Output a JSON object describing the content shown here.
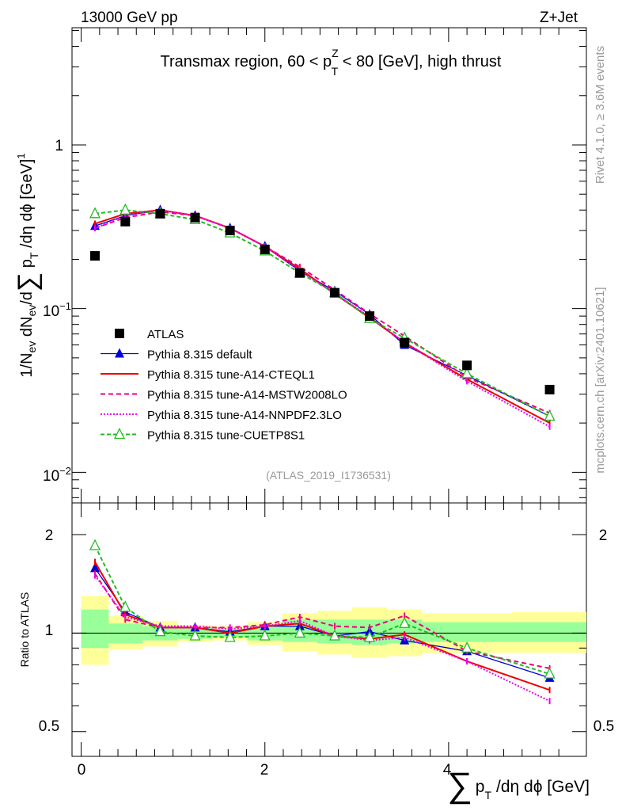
{
  "header": {
    "left": "13000 GeV pp",
    "right": "Z+Jet"
  },
  "side_text": {
    "rivet": "Rivet 4.1.0, ≥ 3.6M events",
    "mcplots": "mcplots.cern.ch [arXiv:2401.10621]"
  },
  "ref_label": "(ATLAS_2019_I1736531)",
  "colors": {
    "atlas": "#000000",
    "default": "#0000dd",
    "cteql1": "#ee0000",
    "mstw": "#ee0077",
    "nnpdf": "#ee00ee",
    "cuetp8s1": "#22bb22",
    "band_outer": "#ffff99",
    "band_inner": "#99ff99"
  },
  "chart_data": [
    {
      "type": "line",
      "panel": "main",
      "title": "Transmax region, 60 < p_T^Z < 80 [GeV], high thrust",
      "title_parts": {
        "pre": "Transmax region, 60 < p",
        "sup": "Z",
        "sub": "T",
        "post": " < 80 [GeV], high thrust"
      },
      "ylabel": "1/N_ev dN_ev/d∑ p_T /dη dϕ [GeV]^1",
      "yscale": "log",
      "ylim": [
        0.0065,
        5.2
      ],
      "xlim": [
        -0.1,
        5.5
      ],
      "ytick_labels": [
        "1",
        "10^-1",
        "10^-2"
      ],
      "ytick_values": [
        1,
        0.1,
        0.01
      ],
      "x": [
        0.15,
        0.48,
        0.86,
        1.24,
        1.62,
        2.0,
        2.38,
        2.76,
        3.14,
        3.52,
        4.2,
        5.1
      ],
      "series": [
        {
          "name": "ATLAS",
          "color_key": "atlas",
          "marker": "square",
          "values": [
            0.21,
            0.34,
            0.38,
            0.36,
            0.3,
            0.23,
            0.165,
            0.125,
            0.09,
            0.062,
            0.045,
            0.032
          ]
        },
        {
          "name": "Pythia 8.315 default",
          "color_key": "default",
          "marker": "triangle",
          "dash": "",
          "values": [
            0.32,
            0.37,
            0.4,
            0.37,
            0.31,
            0.24,
            0.17,
            0.128,
            0.092,
            0.06,
            0.039,
            0.022
          ]
        },
        {
          "name": "Pythia 8.315 tune-A14-CTEQL1",
          "color_key": "cteql1",
          "marker": "none",
          "dash": "",
          "values": [
            0.33,
            0.38,
            0.4,
            0.37,
            0.31,
            0.24,
            0.175,
            0.123,
            0.088,
            0.062,
            0.037,
            0.02
          ]
        },
        {
          "name": "Pythia 8.315 tune-A14-MSTW2008LO",
          "color_key": "mstw",
          "marker": "none",
          "dash": "6,4",
          "values": [
            0.31,
            0.36,
            0.39,
            0.37,
            0.31,
            0.24,
            0.18,
            0.13,
            0.093,
            0.068,
            0.038,
            0.023
          ]
        },
        {
          "name": "Pythia 8.315 tune-A14-NNPDF2.3LO",
          "color_key": "nnpdf",
          "marker": "none",
          "dash": "2,2",
          "values": [
            0.31,
            0.37,
            0.4,
            0.37,
            0.31,
            0.24,
            0.17,
            0.124,
            0.089,
            0.062,
            0.036,
            0.019
          ]
        },
        {
          "name": "Pythia 8.315 tune-CUETP8S1",
          "color_key": "cuetp8s1",
          "marker": "open-triangle",
          "dash": "5,3",
          "values": [
            0.38,
            0.4,
            0.38,
            0.35,
            0.29,
            0.225,
            0.165,
            0.125,
            0.087,
            0.066,
            0.04,
            0.022
          ]
        }
      ]
    },
    {
      "type": "line",
      "panel": "ratio",
      "ylabel": "Ratio to ATLAS",
      "xlabel": "∑ p_T /dη dϕ [GeV]",
      "xlabel_parts": {
        "sum": "∑",
        "p": "p",
        "sub": "T",
        "rest": "/dη dϕ [GeV]"
      },
      "yscale": "log",
      "ylim": [
        0.42,
        2.5
      ],
      "xlim": [
        -0.1,
        5.5
      ],
      "ytick_labels": [
        "2",
        "1",
        "0.5"
      ],
      "ytick_values": [
        2,
        1,
        0.5
      ],
      "xtick_labels": [
        "0",
        "2",
        "4"
      ],
      "xtick_values": [
        0,
        2,
        4
      ],
      "bins": [
        {
          "lo": 0.0,
          "hi": 0.3,
          "inner": [
            0.9,
            1.18
          ],
          "outer": [
            0.8,
            1.3
          ]
        },
        {
          "lo": 0.3,
          "hi": 0.67,
          "inner": [
            0.93,
            1.07
          ],
          "outer": [
            0.89,
            1.13
          ]
        },
        {
          "lo": 0.67,
          "hi": 1.05,
          "inner": [
            0.95,
            1.05
          ],
          "outer": [
            0.91,
            1.09
          ]
        },
        {
          "lo": 1.05,
          "hi": 1.43,
          "inner": [
            0.96,
            1.04
          ],
          "outer": [
            0.94,
            1.06
          ]
        },
        {
          "lo": 1.43,
          "hi": 1.81,
          "inner": [
            0.97,
            1.03
          ],
          "outer": [
            0.95,
            1.05
          ]
        },
        {
          "lo": 1.81,
          "hi": 2.19,
          "inner": [
            0.95,
            1.05
          ],
          "outer": [
            0.92,
            1.08
          ]
        },
        {
          "lo": 2.19,
          "hi": 2.57,
          "inner": [
            0.94,
            1.1
          ],
          "outer": [
            0.88,
            1.15
          ]
        },
        {
          "lo": 2.57,
          "hi": 2.95,
          "inner": [
            0.93,
            1.1
          ],
          "outer": [
            0.86,
            1.17
          ]
        },
        {
          "lo": 2.95,
          "hi": 3.33,
          "inner": [
            0.92,
            1.1
          ],
          "outer": [
            0.84,
            1.2
          ]
        },
        {
          "lo": 3.33,
          "hi": 3.71,
          "inner": [
            0.93,
            1.1
          ],
          "outer": [
            0.85,
            1.18
          ]
        },
        {
          "lo": 3.71,
          "hi": 4.69,
          "inner": [
            0.94,
            1.08
          ],
          "outer": [
            0.87,
            1.15
          ]
        },
        {
          "lo": 4.69,
          "hi": 5.5,
          "inner": [
            0.94,
            1.08
          ],
          "outer": [
            0.87,
            1.16
          ]
        }
      ],
      "x": [
        0.15,
        0.48,
        0.86,
        1.24,
        1.62,
        2.0,
        2.38,
        2.76,
        3.14,
        3.52,
        4.2,
        5.1
      ],
      "series": [
        {
          "name": "Pythia 8.315 default",
          "color_key": "default",
          "marker": "triangle",
          "dash": "",
          "values": [
            1.58,
            1.16,
            1.04,
            1.04,
            1.01,
            1.05,
            1.05,
            0.98,
            1.01,
            0.95,
            0.88,
            0.73
          ]
        },
        {
          "name": "Pythia 8.315 tune-A14-CTEQL1",
          "color_key": "cteql1",
          "marker": "none",
          "dash": "",
          "values": [
            1.65,
            1.14,
            1.04,
            1.04,
            1.0,
            1.05,
            1.07,
            0.98,
            0.96,
            0.99,
            0.82,
            0.67
          ]
        },
        {
          "name": "Pythia 8.315 tune-A14-MSTW2008LO",
          "color_key": "mstw",
          "marker": "none",
          "dash": "6,4",
          "values": [
            1.52,
            1.1,
            1.04,
            1.04,
            1.04,
            1.06,
            1.12,
            1.05,
            1.04,
            1.13,
            0.88,
            0.78
          ]
        },
        {
          "name": "Pythia 8.315 tune-A14-NNPDF2.3LO",
          "color_key": "nnpdf",
          "marker": "none",
          "dash": "2,2",
          "values": [
            1.5,
            1.12,
            1.05,
            1.05,
            1.03,
            1.05,
            1.09,
            0.98,
            0.95,
            0.97,
            0.82,
            0.62
          ]
        },
        {
          "name": "Pythia 8.315 tune-CUETP8S1",
          "color_key": "cuetp8s1",
          "marker": "open-triangle",
          "dash": "5,3",
          "values": [
            1.85,
            1.2,
            1.01,
            0.98,
            0.97,
            0.98,
            1.0,
            0.98,
            0.97,
            1.07,
            0.9,
            0.75
          ]
        }
      ]
    }
  ]
}
